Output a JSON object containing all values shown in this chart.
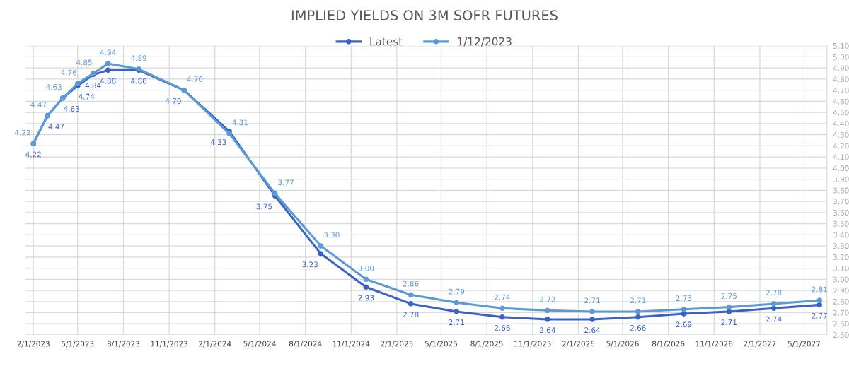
{
  "chart_data": {
    "type": "line",
    "title": "IMPLIED YIELDS ON 3M SOFR FUTURES",
    "x": [
      "2023-02-01",
      "2023-03-01",
      "2023-04-01",
      "2023-05-01",
      "2023-06-01",
      "2023-07-01",
      "2023-09-01",
      "2023-12-01",
      "2024-03-01",
      "2024-06-01",
      "2024-09-01",
      "2024-12-01",
      "2025-03-01",
      "2025-06-01",
      "2025-09-01",
      "2025-12-01",
      "2026-03-01",
      "2026-06-01",
      "2026-09-01",
      "2026-12-01",
      "2027-03-01",
      "2027-06-01"
    ],
    "series": [
      {
        "name": "Latest",
        "color": "#3b62c4",
        "values": [
          4.22,
          4.47,
          4.63,
          4.74,
          4.84,
          4.88,
          4.88,
          4.7,
          4.33,
          3.75,
          3.23,
          2.93,
          2.78,
          2.71,
          2.66,
          2.64,
          2.64,
          2.66,
          2.69,
          2.71,
          2.74,
          2.77
        ],
        "value_labels": [
          "4.22",
          "4.47",
          "4.63",
          "4.74",
          "4.84",
          "4.88",
          "4.88",
          "4.70",
          "4.33",
          "3.75",
          "3.23",
          "2.93",
          "2.78",
          "2.71",
          "2.66",
          "2.64",
          "2.64",
          "2.66",
          "2.69",
          "2.71",
          "2.74",
          "2.77"
        ]
      },
      {
        "name": "1/12/2023",
        "color": "#5b9bd5",
        "values": [
          4.22,
          4.47,
          4.63,
          4.76,
          4.85,
          4.94,
          4.89,
          4.7,
          4.31,
          3.77,
          3.3,
          3.0,
          2.86,
          2.79,
          2.74,
          2.72,
          2.71,
          2.71,
          2.73,
          2.75,
          2.78,
          2.81
        ],
        "value_labels": [
          "4.22",
          "4.47",
          "4.63",
          "4.76",
          "4.85",
          "4.94",
          "4.89",
          "4.70",
          "4.31",
          "3.77",
          "3.30",
          "3.00",
          "2.86",
          "2.79",
          "2.74",
          "2.72",
          "2.71",
          "2.71",
          "2.73",
          "2.75",
          "2.78",
          "2.81"
        ]
      }
    ],
    "xlim": [
      "2023-01-16",
      "2027-06-16"
    ],
    "xticks": [
      {
        "value": "2023-02-01",
        "label": "2/1/2023"
      },
      {
        "value": "2023-05-01",
        "label": "5/1/2023"
      },
      {
        "value": "2023-08-01",
        "label": "8/1/2023"
      },
      {
        "value": "2023-11-01",
        "label": "11/1/2023"
      },
      {
        "value": "2024-02-01",
        "label": "2/1/2024"
      },
      {
        "value": "2024-05-01",
        "label": "5/1/2024"
      },
      {
        "value": "2024-08-01",
        "label": "8/1/2024"
      },
      {
        "value": "2024-11-01",
        "label": "11/1/2024"
      },
      {
        "value": "2025-02-01",
        "label": "2/1/2025"
      },
      {
        "value": "2025-05-01",
        "label": "5/1/2025"
      },
      {
        "value": "2025-08-01",
        "label": "8/1/2025"
      },
      {
        "value": "2025-11-01",
        "label": "11/1/2025"
      },
      {
        "value": "2026-02-01",
        "label": "2/1/2026"
      },
      {
        "value": "2026-05-01",
        "label": "5/1/2026"
      },
      {
        "value": "2026-08-01",
        "label": "8/1/2026"
      },
      {
        "value": "2026-11-01",
        "label": "11/1/2026"
      },
      {
        "value": "2027-02-01",
        "label": "2/1/2027"
      },
      {
        "value": "2027-05-01",
        "label": "5/1/2027"
      }
    ],
    "ylim": [
      2.5,
      5.1
    ],
    "yticks": [
      {
        "value": 2.5,
        "label": "2.50"
      },
      {
        "value": 2.6,
        "label": "2.60"
      },
      {
        "value": 2.7,
        "label": "2.70"
      },
      {
        "value": 2.8,
        "label": "2.80"
      },
      {
        "value": 2.9,
        "label": "2.90"
      },
      {
        "value": 3.0,
        "label": "3.00"
      },
      {
        "value": 3.1,
        "label": "3.10"
      },
      {
        "value": 3.2,
        "label": "3.20"
      },
      {
        "value": 3.3,
        "label": "3.30"
      },
      {
        "value": 3.4,
        "label": "3.40"
      },
      {
        "value": 3.5,
        "label": "3.50"
      },
      {
        "value": 3.6,
        "label": "3.60"
      },
      {
        "value": 3.7,
        "label": "3.70"
      },
      {
        "value": 3.8,
        "label": "3.80"
      },
      {
        "value": 3.9,
        "label": "3.90"
      },
      {
        "value": 4.0,
        "label": "4.00"
      },
      {
        "value": 4.1,
        "label": "4.10"
      },
      {
        "value": 4.2,
        "label": "4.20"
      },
      {
        "value": 4.3,
        "label": "4.30"
      },
      {
        "value": 4.4,
        "label": "4.40"
      },
      {
        "value": 4.5,
        "label": "4.50"
      },
      {
        "value": 4.6,
        "label": "4.60"
      },
      {
        "value": 4.7,
        "label": "4.70"
      },
      {
        "value": 4.8,
        "label": "4.80"
      },
      {
        "value": 4.9,
        "label": "4.90"
      },
      {
        "value": 5.0,
        "label": "5.00"
      },
      {
        "value": 5.1,
        "label": "5.10"
      }
    ],
    "grid": true,
    "legend": "top",
    "marker": "circle",
    "line_style": "solid"
  }
}
